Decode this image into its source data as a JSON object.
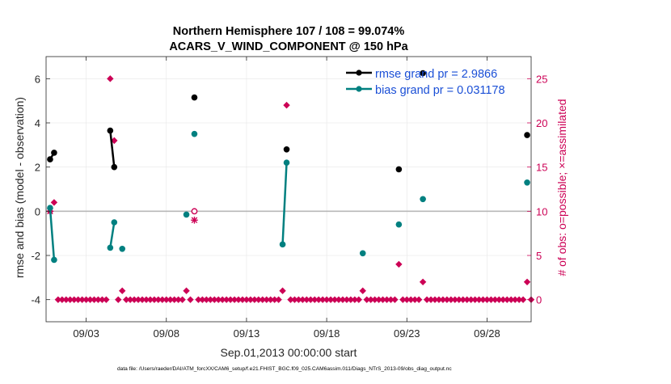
{
  "chart_data": {
    "type": "line",
    "title": "Northern Hemisphere 107 / 108 = 99.074%",
    "subtitle": "ACARS_V_WIND_COMPONENT @ 150 hPa",
    "xlabel": "Sep.01,2013 00:00:00 start",
    "ylabel": "rmse and bias (model - observation)",
    "y2label": "# of obs: o=possible; ×=assimilated",
    "footer": "data file: /Users/raeder/DAI/ATM_forcXX/CAM6_setup/f.e21.FHIST_BGC.f09_025.CAM6assim.011/Diags_NTrS_2013-09/obs_diag_output.nc",
    "xlim": [
      1,
      31.25
    ],
    "ylim": [
      -5,
      7
    ],
    "y2lim": [
      -2.5,
      27.5
    ],
    "x_ticks": [
      {
        "value": 3.5,
        "label": "09/03"
      },
      {
        "value": 8.5,
        "label": "09/08"
      },
      {
        "value": 13.5,
        "label": "09/13"
      },
      {
        "value": 18.5,
        "label": "09/18"
      },
      {
        "value": 23.5,
        "label": "09/23"
      },
      {
        "value": 28.5,
        "label": "09/28"
      }
    ],
    "y_ticks": [
      {
        "value": -4,
        "label": "-4"
      },
      {
        "value": -2,
        "label": "-2"
      },
      {
        "value": 0,
        "label": "0"
      },
      {
        "value": 2,
        "label": "2"
      },
      {
        "value": 4,
        "label": "4"
      },
      {
        "value": 6,
        "label": "6"
      }
    ],
    "y2_ticks": [
      {
        "value": 0,
        "label": "0"
      },
      {
        "value": 5,
        "label": "5"
      },
      {
        "value": 10,
        "label": "10"
      },
      {
        "value": 15,
        "label": "15"
      },
      {
        "value": 20,
        "label": "20"
      },
      {
        "value": 25,
        "label": "25"
      }
    ],
    "zero_line": 0,
    "legend": {
      "position": "top-right",
      "entries": [
        {
          "label": "rmse grand pr = 2.9866",
          "color": "#000000"
        },
        {
          "label": "bias grand pr = 0.031178",
          "color": "#008080"
        }
      ]
    },
    "series": [
      {
        "name": "rmse",
        "color": "#000000",
        "axis": "left",
        "segments": [
          [
            [
              1.25,
              2.35
            ],
            [
              1.5,
              2.65
            ]
          ],
          [
            [
              5.0,
              3.65
            ],
            [
              5.25,
              2.0
            ]
          ],
          [
            [
              10.25,
              5.15
            ]
          ],
          [
            [
              16.0,
              2.8
            ]
          ],
          [
            [
              23.0,
              1.9
            ]
          ],
          [
            [
              24.5,
              6.25
            ]
          ],
          [
            [
              31.0,
              3.45
            ]
          ]
        ]
      },
      {
        "name": "bias",
        "color": "#008080",
        "axis": "left",
        "segments": [
          [
            [
              1.25,
              0.15
            ],
            [
              1.5,
              -2.2
            ]
          ],
          [
            [
              5.0,
              -1.65
            ],
            [
              5.25,
              -0.5
            ]
          ],
          [
            [
              5.75,
              -1.7
            ]
          ],
          [
            [
              9.75,
              -0.15
            ]
          ],
          [
            [
              10.25,
              3.5
            ]
          ],
          [
            [
              15.75,
              -1.5
            ],
            [
              16.0,
              2.2
            ]
          ],
          [
            [
              20.75,
              -1.9
            ]
          ],
          [
            [
              23.0,
              -0.6
            ]
          ],
          [
            [
              24.5,
              0.55
            ]
          ],
          [
            [
              31.0,
              1.3
            ]
          ]
        ]
      }
    ],
    "obs_possible": {
      "name": "# of obs possible",
      "color": "#cc0055",
      "axis": "right",
      "default": 0,
      "start": 1.25,
      "end": 31.25,
      "step": 0.25,
      "overrides": [
        {
          "x": 1.25,
          "value": 10
        },
        {
          "x": 1.5,
          "value": 11
        },
        {
          "x": 5.0,
          "value": 25
        },
        {
          "x": 5.25,
          "value": 18
        },
        {
          "x": 5.75,
          "value": 1
        },
        {
          "x": 9.75,
          "value": 1
        },
        {
          "x": 10.25,
          "value": 10
        },
        {
          "x": 15.75,
          "value": 1
        },
        {
          "x": 16.0,
          "value": 22
        },
        {
          "x": 20.75,
          "value": 1
        },
        {
          "x": 23.0,
          "value": 4
        },
        {
          "x": 24.5,
          "value": 2
        },
        {
          "x": 31.0,
          "value": 2
        }
      ]
    },
    "obs_assimilated": {
      "name": "# of obs assimilated",
      "color": "#cc0055",
      "axis": "right",
      "points": [
        {
          "x": 1.25,
          "value": 10
        },
        {
          "x": 10.25,
          "value": 9
        }
      ]
    },
    "colors": {
      "right_axis": "#cc0055",
      "zero_line": "#b8b8b8",
      "legend_text": "#1a4fd6",
      "grid": "#e6e6e6"
    }
  }
}
